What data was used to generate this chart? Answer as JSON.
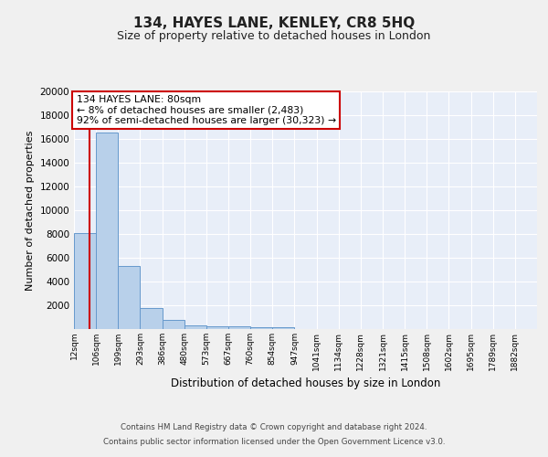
{
  "title": "134, HAYES LANE, KENLEY, CR8 5HQ",
  "subtitle": "Size of property relative to detached houses in London",
  "xlabel": "Distribution of detached houses by size in London",
  "ylabel": "Number of detached properties",
  "bin_labels": [
    "12sqm",
    "106sqm",
    "199sqm",
    "293sqm",
    "386sqm",
    "480sqm",
    "573sqm",
    "667sqm",
    "760sqm",
    "854sqm",
    "947sqm",
    "1041sqm",
    "1134sqm",
    "1228sqm",
    "1321sqm",
    "1415sqm",
    "1508sqm",
    "1602sqm",
    "1695sqm",
    "1789sqm",
    "1882sqm"
  ],
  "bar_heights": [
    8100,
    16500,
    5300,
    1750,
    750,
    330,
    230,
    200,
    160,
    130,
    0,
    0,
    0,
    0,
    0,
    0,
    0,
    0,
    0,
    0,
    0
  ],
  "bar_color": "#b8d0ea",
  "bar_edge_color": "#6699cc",
  "background_color": "#e8eef8",
  "grid_color": "#ffffff",
  "vline_color": "#cc0000",
  "annotation_text": "134 HAYES LANE: 80sqm\n← 8% of detached houses are smaller (2,483)\n92% of semi-detached houses are larger (30,323) →",
  "annotation_box_color": "#ffffff",
  "annotation_box_edge": "#cc0000",
  "ylim": [
    0,
    20000
  ],
  "yticks": [
    0,
    2000,
    4000,
    6000,
    8000,
    10000,
    12000,
    14000,
    16000,
    18000,
    20000
  ],
  "fig_bg": "#f0f0f0",
  "footer_line1": "Contains HM Land Registry data © Crown copyright and database right 2024.",
  "footer_line2": "Contains public sector information licensed under the Open Government Licence v3.0."
}
